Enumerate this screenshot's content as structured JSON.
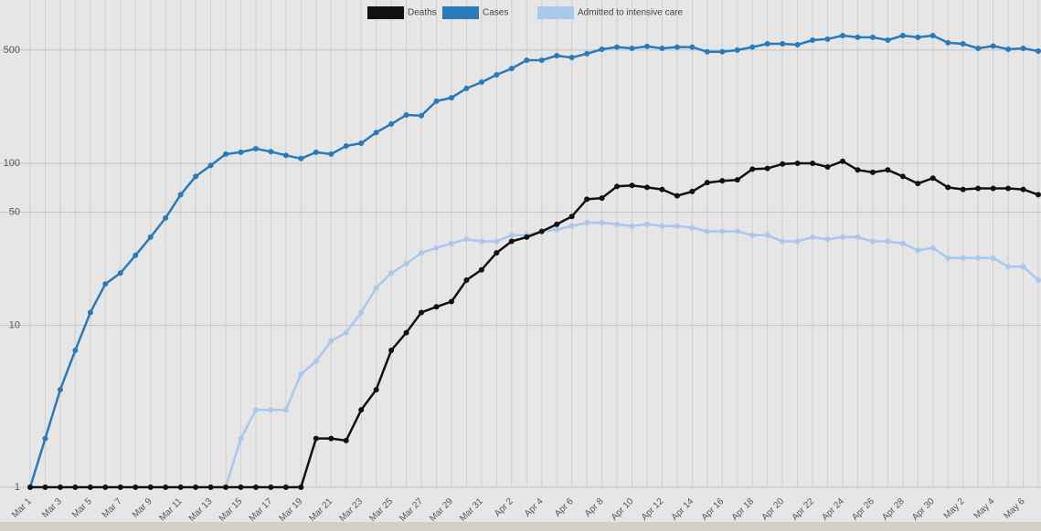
{
  "chart_data": {
    "type": "line",
    "log_scale": true,
    "grid": true,
    "legend": "top",
    "categories": [
      "Mar 1",
      null,
      "Mar 3",
      null,
      "Mar 5",
      null,
      "Mar 7",
      null,
      "Mar 9",
      null,
      "Mar 11",
      null,
      "Mar 13",
      null,
      "Mar 15",
      null,
      "Mar 17",
      null,
      "Mar 19",
      null,
      "Mar 21",
      null,
      "Mar 23",
      null,
      "Mar 25",
      null,
      "Mar 27",
      null,
      "Mar 29",
      null,
      "Mar 31",
      null,
      "Apr 2",
      null,
      "Apr 4",
      null,
      "Apr 6",
      null,
      "Apr 8",
      null,
      "Apr 10",
      null,
      "Apr 12",
      null,
      "Apr 14",
      null,
      "Apr 16",
      null,
      "Apr 18",
      null,
      "Apr 20",
      null,
      "Apr 22",
      null,
      "Apr 24",
      null,
      "Apr 26",
      null,
      "Apr 28",
      null,
      "Apr 30",
      null,
      "May 2",
      null,
      "May 4",
      null,
      "May 6",
      null
    ],
    "series": [
      {
        "name": "Deaths",
        "color": "#111111",
        "values": [
          1,
          1,
          1,
          1,
          1,
          1,
          1,
          1,
          1,
          1,
          1,
          1,
          1,
          1,
          1,
          1,
          1,
          1,
          1,
          2,
          2,
          1.94,
          3,
          4,
          7,
          9,
          12,
          13,
          14,
          19,
          22,
          28,
          33,
          35,
          38,
          42,
          47,
          60,
          61,
          72,
          73,
          71,
          69,
          63,
          67,
          76,
          78,
          79,
          92,
          93,
          99,
          100,
          100,
          95,
          103,
          91,
          88,
          91,
          83,
          75,
          81,
          71,
          69,
          70,
          70,
          70,
          69,
          64
        ]
      },
      {
        "name": "Cases",
        "color": "#2a7ab9",
        "values": [
          1,
          2,
          4,
          7,
          12,
          18,
          21,
          27,
          35,
          46,
          64,
          83,
          97,
          114,
          117,
          123,
          118,
          112,
          107,
          117,
          114,
          128,
          133,
          155,
          175,
          199,
          197,
          242,
          254,
          290,
          317,
          352,
          385,
          433,
          433,
          462,
          450,
          475,
          506,
          522,
          513,
          527,
          513,
          522,
          522,
          488,
          488,
          500,
          522,
          547,
          547,
          540,
          576,
          585,
          615,
          600,
          600,
          576,
          615,
          600,
          615,
          555,
          547,
          513,
          530,
          506,
          513,
          493
        ]
      },
      {
        "name": "Admitted to intensive care",
        "color": "#aac8ec",
        "values": [
          null,
          null,
          null,
          null,
          null,
          null,
          null,
          null,
          null,
          null,
          null,
          null,
          null,
          1,
          2,
          3,
          3,
          3,
          5,
          6,
          8,
          9,
          12,
          17,
          21,
          24,
          28,
          30,
          32,
          34,
          33,
          33,
          36,
          36,
          38,
          39,
          41,
          43,
          43,
          42,
          41,
          42,
          41,
          41,
          40,
          38,
          38,
          38,
          36,
          36,
          33,
          33,
          35,
          34,
          35,
          35,
          33,
          33,
          32,
          29,
          30,
          26,
          26,
          26,
          26,
          23,
          23,
          19
        ]
      }
    ],
    "ylim": [
      1,
      1000
    ],
    "yticks": [
      1,
      10,
      50,
      100,
      500
    ]
  }
}
